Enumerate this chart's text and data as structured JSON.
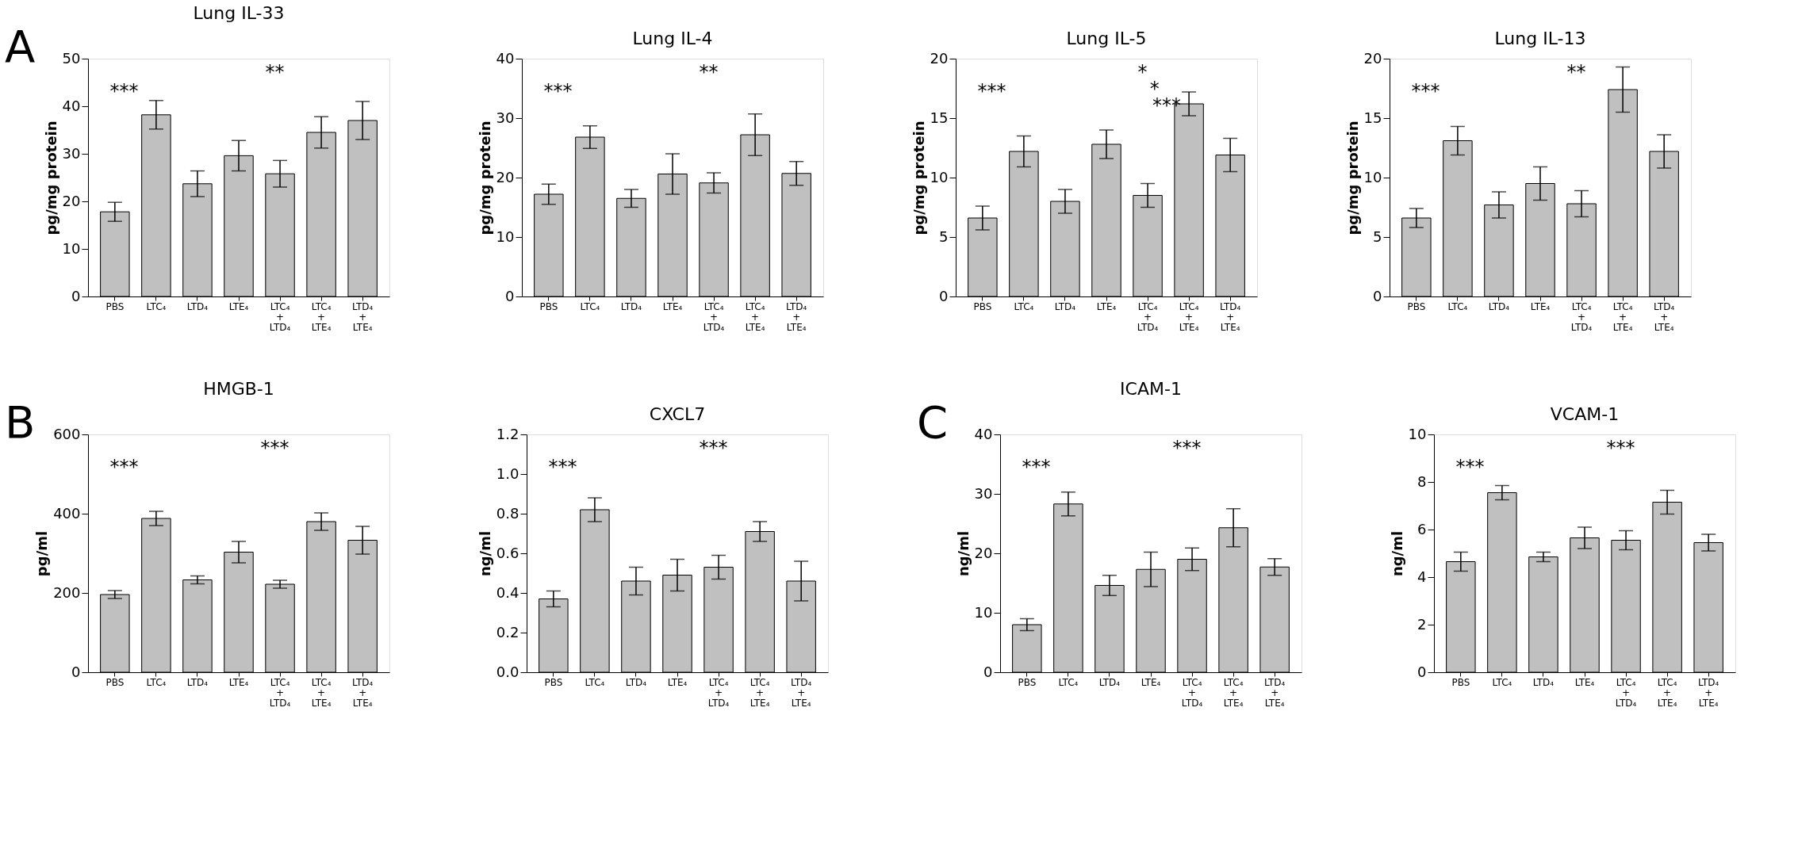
{
  "chart_data": [
    {
      "type": "bar",
      "title": "Lung IL-33",
      "ylabel": "pg/mg protein",
      "categories": [
        "PBS",
        "LTC₄",
        "LTD₄",
        "LTE₄",
        "LTC₄ + LTD₄",
        "LTC₄ + LTE₄",
        "LTD₄ + LTE₄"
      ],
      "values": [
        17.8,
        38.2,
        23.7,
        29.6,
        25.8,
        34.5,
        37
      ],
      "errors": [
        2,
        3,
        2.7,
        3.2,
        2.8,
        3.3,
        4
      ],
      "color": "#c0c0c0",
      "ylim": [
        0,
        50
      ],
      "yticks": [
        0,
        10,
        20,
        30,
        40,
        50
      ],
      "grid": false,
      "annotations": [
        "A",
        "***",
        "**"
      ]
    },
    {
      "type": "bar",
      "title": "Lung IL-4",
      "ylabel": "pg/mg protein",
      "categories": [
        "PBS",
        "LTC₄",
        "LTD₄",
        "LTE₄",
        "LTC₄ + LTD₄",
        "LTC₄ + LTE₄",
        "LTD₄ + LTE₄"
      ],
      "values": [
        17.2,
        26.8,
        16.5,
        20.6,
        19.1,
        27.2,
        20.7
      ],
      "errors": [
        1.7,
        1.9,
        1.5,
        3.4,
        1.7,
        3.5,
        2
      ],
      "color": "#c0c0c0",
      "ylim": [
        0,
        40
      ],
      "yticks": [
        0,
        10,
        20,
        30,
        40
      ],
      "grid": false,
      "annotations": [
        "***",
        "**"
      ]
    },
    {
      "type": "bar",
      "title": "Lung IL-5",
      "ylabel": "pg/mg protein",
      "categories": [
        "PBS",
        "LTC₄",
        "LTD₄",
        "LTE₄",
        "LTC₄ + LTD₄",
        "LTC₄ + LTE₄",
        "LTD₄ + LTE₄"
      ],
      "values": [
        6.6,
        12.2,
        8,
        12.8,
        8.5,
        16.2,
        11.9
      ],
      "errors": [
        1,
        1.3,
        1,
        1.2,
        1,
        1,
        1.4
      ],
      "color": "#c0c0c0",
      "ylim": [
        0,
        20
      ],
      "yticks": [
        0,
        5,
        10,
        15,
        20
      ],
      "grid": false,
      "annotations": [
        "***",
        "*",
        "*",
        "***"
      ]
    },
    {
      "type": "bar",
      "title": "Lung IL-13",
      "ylabel": "pg/mg protein",
      "categories": [
        "PBS",
        "LTC₄",
        "LTD₄",
        "LTE₄",
        "LTC₄ + LTD₄",
        "LTC₄ + LTE₄",
        "LTD₄ + LTE₄"
      ],
      "values": [
        6.6,
        13.1,
        7.7,
        9.5,
        7.8,
        17.4,
        12.2
      ],
      "errors": [
        0.8,
        1.2,
        1.1,
        1.4,
        1.1,
        1.9,
        1.4
      ],
      "color": "#c0c0c0",
      "ylim": [
        0,
        20
      ],
      "yticks": [
        0,
        5,
        10,
        15,
        20
      ],
      "grid": false,
      "annotations": [
        "***",
        "**"
      ]
    },
    {
      "type": "bar",
      "title": "HMGB-1",
      "ylabel": "pg/ml",
      "categories": [
        "PBS",
        "LTC₄",
        "LTD₄",
        "LTE₄",
        "LTC₄ + LTD₄",
        "LTC₄ + LTE₄",
        "LTD₄ + LTE₄"
      ],
      "values": [
        196,
        388,
        233,
        303,
        222,
        380,
        333
      ],
      "errors": [
        10,
        18,
        10,
        27,
        10,
        22,
        35
      ],
      "color": "#c0c0c0",
      "ylim": [
        0,
        600
      ],
      "yticks": [
        0,
        200,
        400,
        600
      ],
      "grid": false,
      "annotations": [
        "B",
        "***",
        "***"
      ]
    },
    {
      "type": "bar",
      "title": "CXCL7",
      "ylabel": "ng/ml",
      "categories": [
        "PBS",
        "LTC₄",
        "LTD₄",
        "LTE₄",
        "LTC₄ + LTD₄",
        "LTC₄ + LTE₄",
        "LTD₄ + LTE₄"
      ],
      "values": [
        0.37,
        0.82,
        0.46,
        0.49,
        0.53,
        0.71,
        0.46
      ],
      "errors": [
        0.04,
        0.06,
        0.07,
        0.08,
        0.06,
        0.05,
        0.1
      ],
      "color": "#c0c0c0",
      "ylim": [
        0,
        1.2
      ],
      "yticks": [
        {
          "value": 0,
          "label": "0.0"
        },
        {
          "value": 0.2,
          "label": "0.2"
        },
        {
          "value": 0.4,
          "label": "0.4"
        },
        {
          "value": 0.6,
          "label": "0.6"
        },
        {
          "value": 0.8,
          "label": "0.8"
        },
        {
          "value": 1,
          "label": "1.0"
        },
        {
          "value": 1.2,
          "label": "1.2"
        }
      ],
      "grid": false,
      "annotations": [
        "***",
        "***"
      ]
    },
    {
      "type": "bar",
      "title": "ICAM-1",
      "ylabel": "ng/ml",
      "categories": [
        "PBS",
        "LTC₄",
        "LTD₄",
        "LTE₄",
        "LTC₄ + LTD₄",
        "LTC₄ + LTE₄",
        "LTD₄ + LTE₄"
      ],
      "values": [
        8,
        28.3,
        14.6,
        17.3,
        19,
        24.3,
        17.7
      ],
      "errors": [
        1,
        2,
        1.7,
        2.9,
        1.9,
        3.2,
        1.4
      ],
      "color": "#c0c0c0",
      "ylim": [
        0,
        40
      ],
      "yticks": [
        0,
        10,
        20,
        30,
        40
      ],
      "grid": false,
      "annotations": [
        "C",
        "***",
        "***"
      ]
    },
    {
      "type": "bar",
      "title": "VCAM-1",
      "ylabel": "ng/ml",
      "categories": [
        "PBS",
        "LTC₄",
        "LTD₄",
        "LTE₄",
        "LTC₄ + LTD₄",
        "LTC₄ + LTE₄",
        "LTD₄ + LTE₄"
      ],
      "values": [
        4.65,
        7.55,
        4.85,
        5.65,
        5.55,
        7.15,
        5.45
      ],
      "errors": [
        0.4,
        0.3,
        0.2,
        0.45,
        0.4,
        0.5,
        0.35
      ],
      "color": "#c0c0c0",
      "ylim": [
        0,
        10
      ],
      "yticks": [
        0,
        2,
        4,
        6,
        8,
        10
      ],
      "grid": false,
      "annotations": [
        "***",
        "***"
      ]
    }
  ]
}
